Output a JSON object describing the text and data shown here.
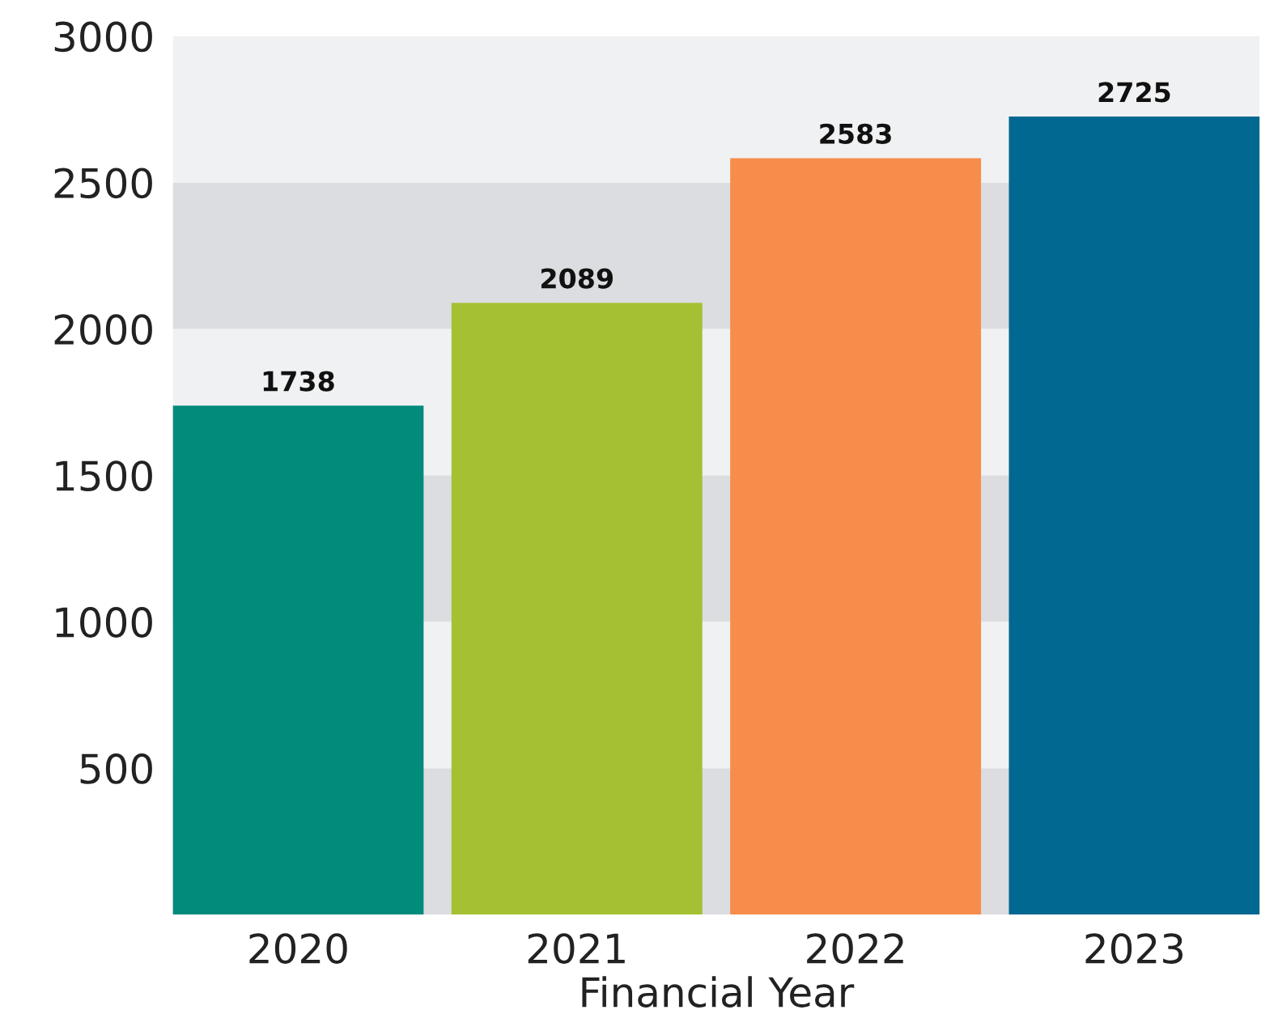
{
  "chart_data": {
    "type": "bar",
    "xlabel": "Financial Year",
    "categories": [
      "2020",
      "2021",
      "2022",
      "2023"
    ],
    "values": [
      1738,
      2089,
      2583,
      2725
    ],
    "colors": [
      "#008b7b",
      "#a5c032",
      "#f68d4b",
      "#006891"
    ],
    "data_labels": true,
    "ylim": [
      0,
      3000
    ],
    "yticks": [
      500,
      1000,
      1500,
      2000,
      2500,
      3000
    ],
    "grid": false,
    "bands": [
      {
        "axis": "y",
        "from": 0,
        "to": 500,
        "color": "#dcdde0"
      },
      {
        "axis": "y",
        "from": 500,
        "to": 1000,
        "color": "#f0f1f2"
      },
      {
        "axis": "y",
        "from": 1000,
        "to": 1500,
        "color": "#dcdde0"
      },
      {
        "axis": "y",
        "from": 1500,
        "to": 2000,
        "color": "#f0f1f2"
      },
      {
        "axis": "y",
        "from": 2000,
        "to": 2500,
        "color": "#dcdde0"
      },
      {
        "axis": "y",
        "from": 2500,
        "to": 3000,
        "color": "#f0f1f2"
      }
    ]
  }
}
